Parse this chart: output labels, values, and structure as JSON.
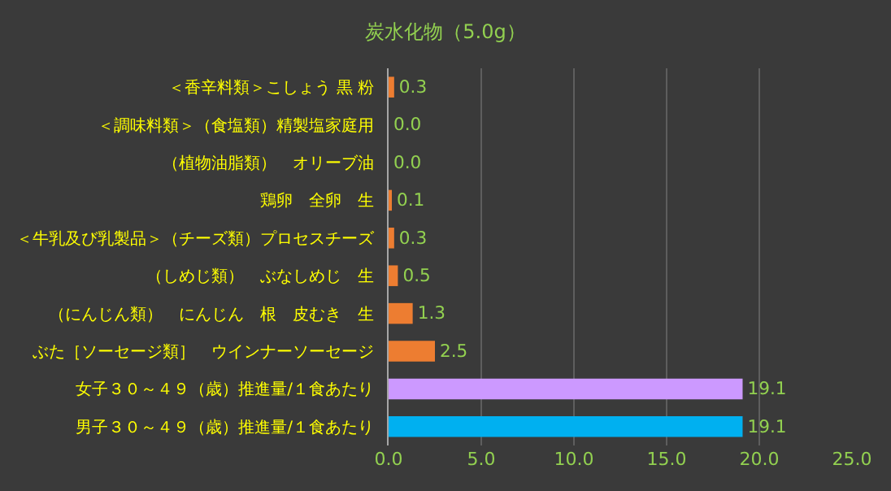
{
  "chart_data": {
    "type": "bar",
    "orientation": "horizontal",
    "title": "炭水化物（5.0g）",
    "categories": [
      "＜香辛料類＞こしょう 黒 粉",
      "＜調味料類＞（食塩類）精製塩家庭用",
      "（植物油脂類）　オリーブ油",
      "鶏卵　全卵　生",
      "＜牛乳及び乳製品＞（チーズ類）プロセスチーズ",
      "（しめじ類）　ぶなしめじ　生",
      "（にんじん類）　にんじん　根　皮むき　生",
      "ぶた［ソーセージ類］　ウインナーソーセージ",
      "女子３０～４９（歳）推進量/１食あたり",
      "男子３０～４９（歳）推進量/１食あたり"
    ],
    "values": [
      0.3,
      0.0,
      0.0,
      0.1,
      0.3,
      0.5,
      1.3,
      2.5,
      19.1,
      19.1
    ],
    "value_labels": [
      "0.3",
      "0.0",
      "0.0",
      "0.1",
      "0.3",
      "0.5",
      "1.3",
      "2.5",
      "19.1",
      "19.1"
    ],
    "colors": [
      "#ed7d31",
      "#ed7d31",
      "#ed7d31",
      "#ed7d31",
      "#ed7d31",
      "#ed7d31",
      "#ed7d31",
      "#ed7d31",
      "#cc99ff",
      "#00b0f0"
    ],
    "xlim": [
      0,
      25
    ],
    "xticks": [
      {
        "value": 0,
        "label": "0.0"
      },
      {
        "value": 5,
        "label": "5.0"
      },
      {
        "value": 10,
        "label": "10.0"
      },
      {
        "value": 15,
        "label": "15.0"
      },
      {
        "value": 20,
        "label": "20.0"
      },
      {
        "value": 25,
        "label": "25.0"
      }
    ],
    "grid": "x"
  }
}
